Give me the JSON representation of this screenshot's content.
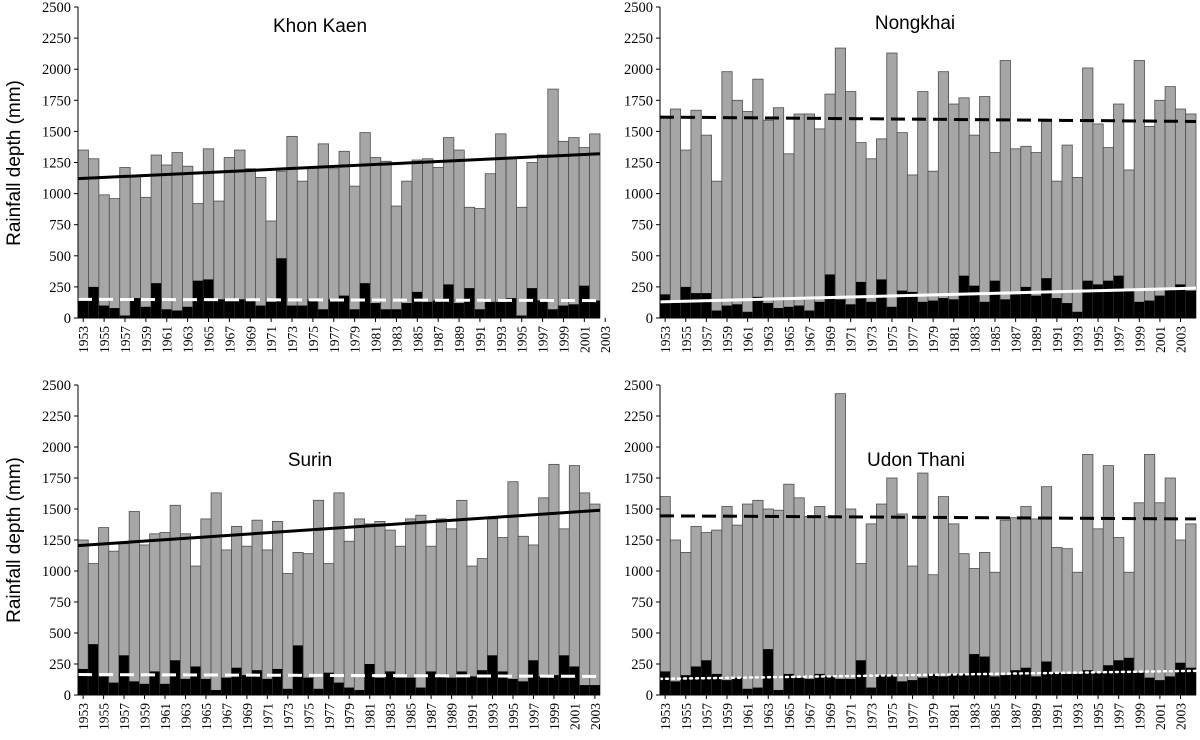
{
  "figure": {
    "ylabel": "Rainfall depth (mm)",
    "colors": {
      "total_bar": "#a6a6a6",
      "extreme_bar": "#000000",
      "bar_edge": "#4d4d4d",
      "trend_dark": "#000000",
      "trend_light": "#ffffff"
    }
  },
  "chart_data": [
    {
      "type": "bar",
      "title": "Khon Kaen",
      "ylabel": "Rainfall depth (mm)",
      "ylim": [
        0,
        2500
      ],
      "yticks": [
        0,
        250,
        500,
        750,
        1000,
        1250,
        1500,
        1750,
        2000,
        2250,
        2500
      ],
      "x_start": 1953,
      "x_tick_labels": [
        "1953",
        "1955",
        "1957",
        "1959",
        "1961",
        "1963",
        "1965",
        "1967",
        "1969",
        "1971",
        "1973",
        "1975",
        "1977",
        "1979",
        "1981",
        "1983",
        "1985",
        "1987",
        "1989",
        "1991",
        "1993",
        "1995",
        "1997",
        "1999",
        "2001",
        "2003"
      ],
      "series": [
        {
          "values": [
            1350,
            1280,
            990,
            960,
            1210,
            1140,
            970,
            1310,
            1230,
            1330,
            1220,
            920,
            1360,
            940,
            1290,
            1350,
            1200,
            1130,
            780,
            1180,
            1460,
            1100,
            1210,
            1400,
            1200,
            1340,
            1060,
            1490,
            1290,
            1260,
            900,
            1100,
            1270,
            1280,
            1210,
            1450,
            1350,
            890,
            880,
            1160,
            1480,
            1290,
            890,
            1250,
            1310,
            1840,
            1420,
            1450,
            1370,
            1480
          ]
        },
        {
          "values": [
            150,
            250,
            100,
            80,
            20,
            160,
            90,
            280,
            70,
            60,
            90,
            300,
            310,
            150,
            150,
            150,
            140,
            100,
            130,
            480,
            100,
            100,
            140,
            70,
            150,
            180,
            70,
            280,
            120,
            70,
            70,
            120,
            210,
            130,
            140,
            270,
            120,
            240,
            70,
            130,
            130,
            160,
            20,
            240,
            140,
            70,
            100,
            110,
            260,
            140
          ]
        }
      ],
      "trend_lines": [
        {
          "style": "solid",
          "color": "dark",
          "start": 1120,
          "end": 1320
        },
        {
          "style": "dashed",
          "color": "light",
          "start": 150,
          "end": 140
        }
      ]
    },
    {
      "type": "bar",
      "title": "Nongkhai",
      "ylabel": "",
      "ylim": [
        0,
        2500
      ],
      "yticks": [
        0,
        250,
        500,
        750,
        1000,
        1250,
        1500,
        1750,
        2000,
        2250,
        2500
      ],
      "x_start": 1953,
      "x_tick_labels": [
        "1953",
        "1955",
        "1957",
        "1959",
        "1961",
        "1963",
        "1965",
        "1967",
        "1969",
        "1971",
        "1973",
        "1975",
        "1977",
        "1979",
        "1981",
        "1983",
        "1985",
        "1987",
        "1989",
        "1991",
        "1993",
        "1995",
        "1997",
        "1999",
        "2001",
        "2003"
      ],
      "series": [
        {
          "values": [
            1610,
            1680,
            1350,
            1670,
            1470,
            1100,
            1980,
            1750,
            1660,
            1920,
            1590,
            1690,
            1320,
            1640,
            1640,
            1520,
            1800,
            2170,
            1820,
            1410,
            1280,
            1440,
            2130,
            1490,
            1150,
            1820,
            1180,
            1980,
            1720,
            1770,
            1470,
            1780,
            1330,
            2070,
            1360,
            1380,
            1330,
            1580,
            1100,
            1390,
            1130,
            2010,
            1560,
            1370,
            1720,
            1190,
            2070,
            1540,
            1750,
            1860,
            1680,
            1640
          ]
        },
        {
          "values": [
            190,
            130,
            250,
            200,
            200,
            60,
            100,
            110,
            50,
            170,
            120,
            80,
            90,
            100,
            60,
            130,
            350,
            150,
            110,
            290,
            130,
            310,
            90,
            220,
            210,
            130,
            140,
            160,
            150,
            340,
            260,
            130,
            300,
            150,
            190,
            250,
            180,
            320,
            160,
            120,
            50,
            300,
            270,
            300,
            340,
            220,
            130,
            140,
            180,
            240,
            270,
            220
          ]
        }
      ],
      "trend_lines": [
        {
          "style": "dashed",
          "color": "dark",
          "start": 1615,
          "end": 1580
        },
        {
          "style": "solid",
          "color": "light",
          "start": 130,
          "end": 240
        }
      ]
    },
    {
      "type": "bar",
      "title": "Surin",
      "ylabel": "Rainfall depth (mm)",
      "ylim": [
        0,
        2500
      ],
      "yticks": [
        0,
        250,
        500,
        750,
        1000,
        1250,
        1500,
        1750,
        2000,
        2250,
        2500
      ],
      "x_start": 1953,
      "x_tick_labels": [
        "1953",
        "1955",
        "1957",
        "1959",
        "1961",
        "1963",
        "1965",
        "1967",
        "1969",
        "1971",
        "1973",
        "1975",
        "1977",
        "1979",
        "1981",
        "1983",
        "1985",
        "1987",
        "1989",
        "1991",
        "1993",
        "1995",
        "1997",
        "1999",
        "2001",
        "2003"
      ],
      "series": [
        {
          "values": [
            1250,
            1060,
            1350,
            1160,
            1220,
            1480,
            1210,
            1300,
            1310,
            1530,
            1300,
            1040,
            1420,
            1630,
            1170,
            1360,
            1200,
            1410,
            1170,
            1400,
            980,
            1150,
            1140,
            1570,
            1060,
            1630,
            1240,
            1420,
            1380,
            1400,
            1330,
            1200,
            1420,
            1450,
            1200,
            1420,
            1340,
            1570,
            1040,
            1100,
            1420,
            1270,
            1720,
            1280,
            1210,
            1590,
            1860,
            1340,
            1850,
            1630,
            1540
          ]
        },
        {
          "values": [
            210,
            410,
            150,
            100,
            320,
            110,
            90,
            190,
            90,
            280,
            130,
            230,
            130,
            40,
            140,
            220,
            160,
            200,
            130,
            210,
            50,
            400,
            140,
            50,
            180,
            100,
            60,
            40,
            250,
            140,
            190,
            140,
            140,
            60,
            190,
            160,
            140,
            190,
            150,
            200,
            320,
            190,
            130,
            110,
            280,
            150,
            160,
            320,
            230,
            80,
            80
          ]
        }
      ],
      "trend_lines": [
        {
          "style": "solid",
          "color": "dark",
          "start": 1205,
          "end": 1490
        },
        {
          "style": "dashed",
          "color": "light",
          "start": 165,
          "end": 150
        }
      ]
    },
    {
      "type": "bar",
      "title": "Udon Thani",
      "ylabel": "",
      "ylim": [
        0,
        2500
      ],
      "yticks": [
        0,
        250,
        500,
        750,
        1000,
        1250,
        1500,
        1750,
        2000,
        2250,
        2500
      ],
      "x_start": 1953,
      "x_tick_labels": [
        "1953",
        "1955",
        "1957",
        "1959",
        "1961",
        "1963",
        "1965",
        "1967",
        "1969",
        "1971",
        "1973",
        "1975",
        "1977",
        "1979",
        "1981",
        "1983",
        "1985",
        "1987",
        "1989",
        "1991",
        "1993",
        "1995",
        "1997",
        "1999",
        "2001",
        "2003"
      ],
      "series": [
        {
          "values": [
            1600,
            1250,
            1150,
            1360,
            1310,
            1330,
            1520,
            1370,
            1540,
            1570,
            1500,
            1490,
            1700,
            1590,
            1440,
            1520,
            1440,
            2430,
            1500,
            1060,
            1380,
            1540,
            1750,
            1460,
            1040,
            1790,
            970,
            1600,
            1380,
            1140,
            1020,
            1150,
            990,
            1410,
            1430,
            1520,
            1420,
            1680,
            1190,
            1180,
            990,
            1940,
            1340,
            1850,
            1270,
            990,
            1550,
            1940,
            1550,
            1750,
            1250,
            1380
          ]
        },
        {
          "values": [
            190,
            110,
            160,
            230,
            280,
            170,
            120,
            140,
            50,
            60,
            370,
            40,
            170,
            140,
            130,
            170,
            150,
            130,
            130,
            280,
            60,
            160,
            160,
            110,
            120,
            140,
            170,
            150,
            170,
            170,
            330,
            310,
            150,
            160,
            200,
            220,
            150,
            270,
            180,
            170,
            170,
            200,
            180,
            240,
            280,
            300,
            180,
            140,
            120,
            150,
            260,
            220
          ]
        }
      ],
      "trend_lines": [
        {
          "style": "dashed",
          "color": "dark",
          "start": 1445,
          "end": 1420
        },
        {
          "style": "dotted",
          "color": "light",
          "start": 130,
          "end": 195
        }
      ]
    }
  ]
}
